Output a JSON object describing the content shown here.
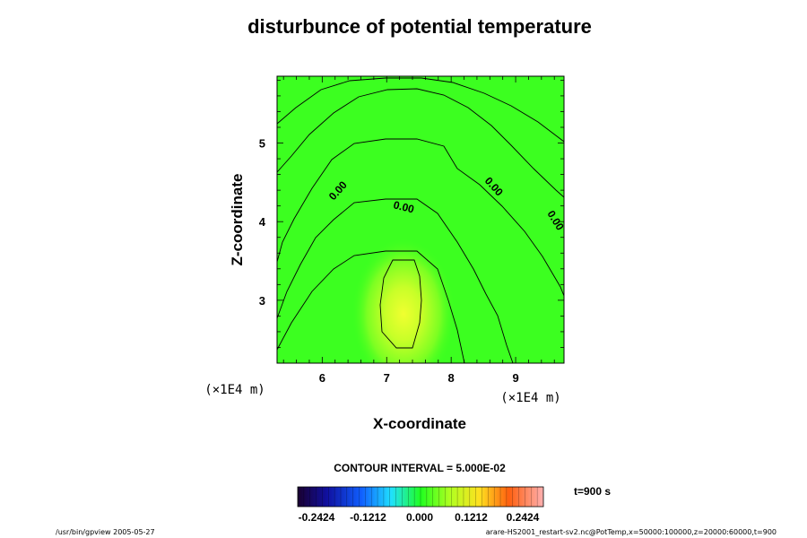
{
  "chart_data": {
    "type": "heatmap",
    "title": "disturbunce of potential temperature",
    "xlabel": "X-coordinate",
    "ylabel": "Z-coordinate",
    "x_unit": "(×1E4 m)",
    "y_unit": "(×1E4 m)",
    "xlim": [
      5.3,
      9.75
    ],
    "ylim": [
      2.2,
      5.85
    ],
    "x_ticks": [
      "6",
      "7",
      "8",
      "9"
    ],
    "y_ticks": [
      "3",
      "4",
      "5"
    ],
    "contour_interval_label": "CONTOUR INTERVAL = 5.000E-02",
    "contour_labels": [
      "0.00",
      "0.00",
      "0.00",
      "0.00"
    ],
    "colorbar": {
      "ticks": [
        "-0.2424",
        "-0.1212",
        "0.000",
        "0.1212",
        "0.2424"
      ],
      "range": [
        -0.2424,
        0.2424
      ]
    },
    "max_anomaly": {
      "x": 7.2,
      "z": 2.85,
      "value": 0.07
    },
    "time_label": "t=900 s"
  },
  "footer": {
    "left": "/usr/bin/gpview 2005-05-27",
    "right": "arare-HS2001_restart-sv2.nc@PotTemp,x=50000:100000,z=20000:60000,t=900"
  }
}
